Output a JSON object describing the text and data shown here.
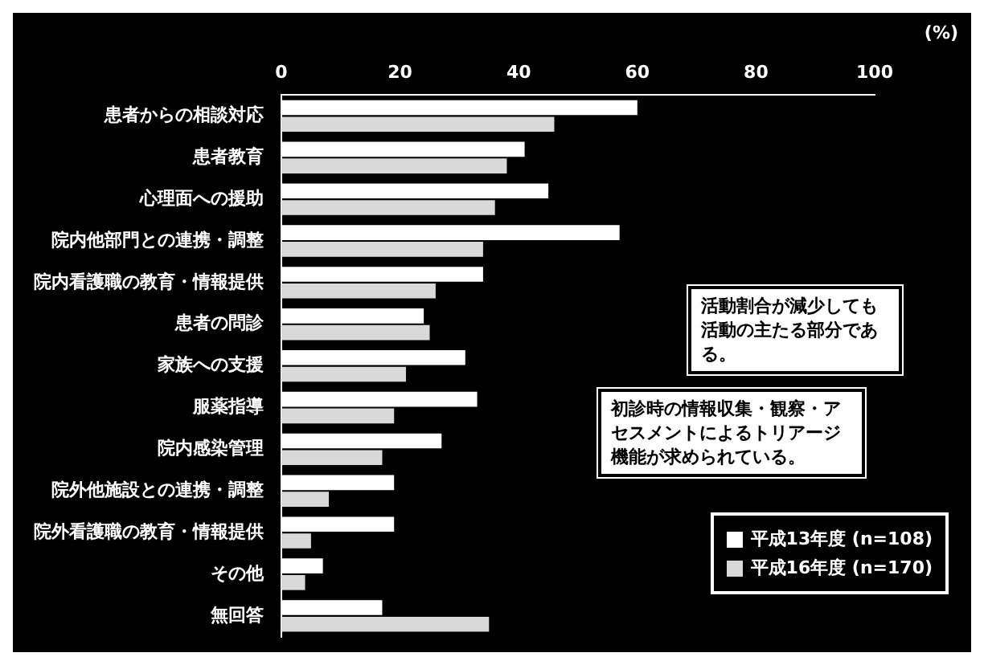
{
  "chart_data": {
    "type": "bar",
    "orientation": "horizontal",
    "xlabel": "(%)",
    "categories": [
      "患者からの相談対応",
      "患者教育",
      "心理面への援助",
      "院内他部門との連携・調整",
      "院内看護職の教育・情報提供",
      "患者の問診",
      "家族への支援",
      "服薬指導",
      "院内感染管理",
      "院外他施設との連携・調整",
      "院外看護職の教育・情報提供",
      "その他",
      "無回答"
    ],
    "series": [
      {
        "name": "平成13年度 (n=108)",
        "color": "#ffffff",
        "values": [
          60,
          41,
          45,
          57,
          34,
          24,
          31,
          33,
          27,
          19,
          19,
          7,
          17
        ]
      },
      {
        "name": "平成16年度 (n=170)",
        "color": "#d9d9d9",
        "values": [
          46,
          38,
          36,
          34,
          26,
          25,
          21,
          19,
          17,
          8,
          5,
          4,
          35
        ]
      }
    ],
    "xlim": [
      0,
      100
    ],
    "xticks": [
      0,
      20,
      40,
      60,
      80,
      100
    ],
    "grid": false,
    "legend": "bottom right",
    "annotations": [
      "活動割合が減少しても活動の主たる部分である。",
      "初診時の情報収集・観察・アセスメントによるトリアージ機能が求められている。"
    ]
  }
}
